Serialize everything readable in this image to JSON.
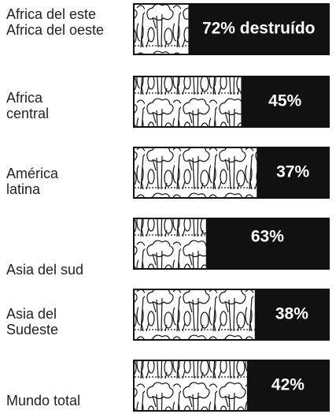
{
  "chart_data": {
    "type": "bar",
    "categories": [
      "Africa del este Africa del oeste",
      "Africa central",
      "América latina",
      "Asia del sud",
      "Asia del Sudeste",
      "Mundo total"
    ],
    "values": [
      72,
      45,
      37,
      63,
      38,
      42
    ],
    "value_labels": [
      "72% destruído",
      "45%",
      "37%",
      "63%",
      "38%",
      "42%"
    ],
    "xlim": [
      0,
      100
    ],
    "color": "#111111"
  }
}
